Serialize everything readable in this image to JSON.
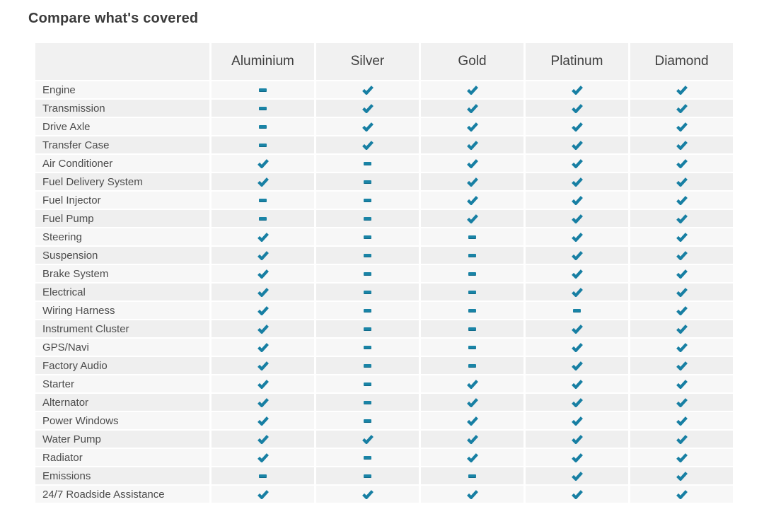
{
  "page": {
    "title": "Compare what's covered"
  },
  "colors": {
    "accent_teal": "#177fa3",
    "header_bg": "#f1f1f1",
    "row_odd_bg": "#f7f7f7",
    "row_even_bg": "#efefef",
    "title_text": "#3b3b3b",
    "header_text": "#3f3f3f",
    "label_text": "#4c4c4c"
  },
  "table": {
    "plans": [
      "Aluminium",
      "Silver",
      "Gold",
      "Platinum",
      "Diamond"
    ],
    "legend": {
      "covered_icon": "check-icon",
      "not_covered_icon": "dash-icon"
    },
    "rows": [
      {
        "feature": "Engine",
        "coverage": [
          false,
          true,
          true,
          true,
          true
        ]
      },
      {
        "feature": "Transmission",
        "coverage": [
          false,
          true,
          true,
          true,
          true
        ]
      },
      {
        "feature": "Drive Axle",
        "coverage": [
          false,
          true,
          true,
          true,
          true
        ]
      },
      {
        "feature": "Transfer Case",
        "coverage": [
          false,
          true,
          true,
          true,
          true
        ]
      },
      {
        "feature": "Air Conditioner",
        "coverage": [
          true,
          false,
          true,
          true,
          true
        ]
      },
      {
        "feature": "Fuel Delivery System",
        "coverage": [
          true,
          false,
          true,
          true,
          true
        ]
      },
      {
        "feature": "Fuel Injector",
        "coverage": [
          false,
          false,
          true,
          true,
          true
        ]
      },
      {
        "feature": "Fuel Pump",
        "coverage": [
          false,
          false,
          true,
          true,
          true
        ]
      },
      {
        "feature": "Steering",
        "coverage": [
          true,
          false,
          false,
          true,
          true
        ]
      },
      {
        "feature": "Suspension",
        "coverage": [
          true,
          false,
          false,
          true,
          true
        ]
      },
      {
        "feature": "Brake System",
        "coverage": [
          true,
          false,
          false,
          true,
          true
        ]
      },
      {
        "feature": "Electrical",
        "coverage": [
          true,
          false,
          false,
          true,
          true
        ]
      },
      {
        "feature": "Wiring Harness",
        "coverage": [
          true,
          false,
          false,
          false,
          true
        ]
      },
      {
        "feature": "Instrument Cluster",
        "coverage": [
          true,
          false,
          false,
          true,
          true
        ]
      },
      {
        "feature": "GPS/Navi",
        "coverage": [
          true,
          false,
          false,
          true,
          true
        ]
      },
      {
        "feature": "Factory Audio",
        "coverage": [
          true,
          false,
          false,
          true,
          true
        ]
      },
      {
        "feature": "Starter",
        "coverage": [
          true,
          false,
          true,
          true,
          true
        ]
      },
      {
        "feature": "Alternator",
        "coverage": [
          true,
          false,
          true,
          true,
          true
        ]
      },
      {
        "feature": "Power Windows",
        "coverage": [
          true,
          false,
          true,
          true,
          true
        ]
      },
      {
        "feature": "Water Pump",
        "coverage": [
          true,
          true,
          true,
          true,
          true
        ]
      },
      {
        "feature": "Radiator",
        "coverage": [
          true,
          false,
          true,
          true,
          true
        ]
      },
      {
        "feature": "Emissions",
        "coverage": [
          false,
          false,
          false,
          true,
          true
        ]
      },
      {
        "feature": "24/7 Roadside Assistance",
        "coverage": [
          true,
          true,
          true,
          true,
          true
        ]
      }
    ]
  }
}
